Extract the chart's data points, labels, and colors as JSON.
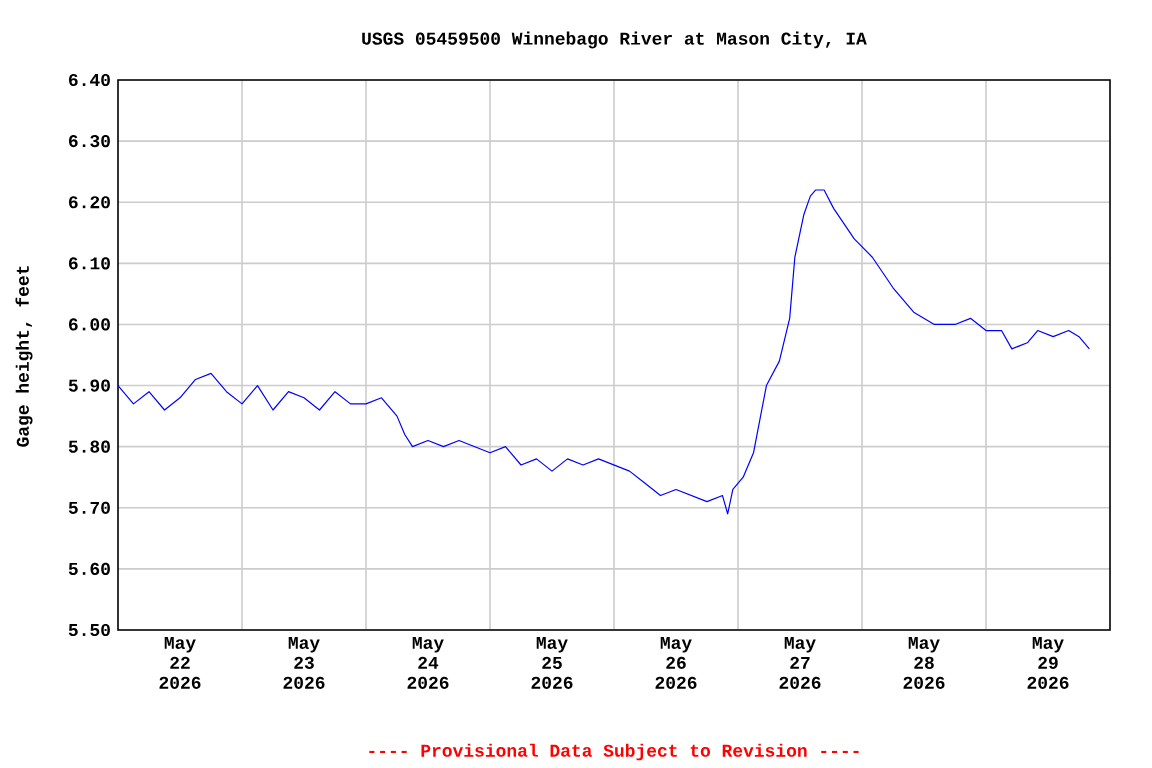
{
  "chart_data": {
    "type": "line",
    "title": "USGS 05459500 Winnebago River at Mason City, IA",
    "ylabel": "Gage height, feet",
    "annotations": [
      "---- Provisional Data Subject to Revision ----"
    ],
    "x": [
      "2026-05-22T00:00",
      "2026-05-22T03:00",
      "2026-05-22T06:00",
      "2026-05-22T09:00",
      "2026-05-22T12:00",
      "2026-05-22T15:00",
      "2026-05-22T18:00",
      "2026-05-22T21:00",
      "2026-05-23T00:00",
      "2026-05-23T03:00",
      "2026-05-23T06:00",
      "2026-05-23T09:00",
      "2026-05-23T12:00",
      "2026-05-23T15:00",
      "2026-05-23T18:00",
      "2026-05-23T21:00",
      "2026-05-24T00:00",
      "2026-05-24T03:00",
      "2026-05-24T06:00",
      "2026-05-24T07:30",
      "2026-05-24T09:00",
      "2026-05-24T12:00",
      "2026-05-24T15:00",
      "2026-05-24T18:00",
      "2026-05-24T21:00",
      "2026-05-25T00:00",
      "2026-05-25T03:00",
      "2026-05-25T06:00",
      "2026-05-25T09:00",
      "2026-05-25T12:00",
      "2026-05-25T15:00",
      "2026-05-25T18:00",
      "2026-05-25T21:00",
      "2026-05-26T00:00",
      "2026-05-26T03:00",
      "2026-05-26T06:00",
      "2026-05-26T09:00",
      "2026-05-26T12:00",
      "2026-05-26T15:00",
      "2026-05-26T18:00",
      "2026-05-26T21:00",
      "2026-05-26T22:00",
      "2026-05-26T23:00",
      "2026-05-27T01:00",
      "2026-05-27T03:00",
      "2026-05-27T05:30",
      "2026-05-27T08:00",
      "2026-05-27T10:00",
      "2026-05-27T11:00",
      "2026-05-27T12:45",
      "2026-05-27T14:00",
      "2026-05-27T15:00",
      "2026-05-27T16:40",
      "2026-05-27T18:30",
      "2026-05-27T22:30",
      "2026-05-28T02:00",
      "2026-05-28T06:00",
      "2026-05-28T10:00",
      "2026-05-28T14:00",
      "2026-05-28T18:00",
      "2026-05-28T21:00",
      "2026-05-29T00:00",
      "2026-05-29T03:00",
      "2026-05-29T05:00",
      "2026-05-29T08:00",
      "2026-05-29T10:00",
      "2026-05-29T13:00",
      "2026-05-29T16:00",
      "2026-05-29T18:00",
      "2026-05-29T20:00"
    ],
    "values": [
      5.9,
      5.87,
      5.89,
      5.86,
      5.88,
      5.91,
      5.92,
      5.89,
      5.87,
      5.9,
      5.86,
      5.89,
      5.88,
      5.86,
      5.89,
      5.87,
      5.87,
      5.88,
      5.85,
      5.82,
      5.8,
      5.81,
      5.8,
      5.81,
      5.8,
      5.79,
      5.8,
      5.77,
      5.78,
      5.76,
      5.78,
      5.77,
      5.78,
      5.77,
      5.76,
      5.74,
      5.72,
      5.73,
      5.72,
      5.71,
      5.72,
      5.69,
      5.73,
      5.75,
      5.79,
      5.9,
      5.94,
      6.01,
      6.11,
      6.18,
      6.21,
      6.22,
      6.22,
      6.19,
      6.14,
      6.11,
      6.06,
      6.02,
      6.0,
      6.0,
      6.01,
      5.99,
      5.99,
      5.96,
      5.97,
      5.99,
      5.98,
      5.99,
      5.98,
      5.96
    ],
    "color": "#0000ff",
    "xlim": [
      "2026-05-22T00:00",
      "2026-05-30T00:00"
    ],
    "xticks": [
      {
        "value": "2026-05-22T12:00",
        "label": "May 22 2026"
      },
      {
        "value": "2026-05-23T00:00",
        "label": null
      },
      {
        "value": "2026-05-23T12:00",
        "label": "May 23 2026"
      },
      {
        "value": "2026-05-24T00:00",
        "label": null
      },
      {
        "value": "2026-05-24T12:00",
        "label": "May 24 2026"
      },
      {
        "value": "2026-05-25T00:00",
        "label": null
      },
      {
        "value": "2026-05-25T12:00",
        "label": "May 25 2026"
      },
      {
        "value": "2026-05-26T00:00",
        "label": null
      },
      {
        "value": "2026-05-26T12:00",
        "label": "May 26 2026"
      },
      {
        "value": "2026-05-27T00:00",
        "label": null
      },
      {
        "value": "2026-05-27T12:00",
        "label": "May 27 2026"
      },
      {
        "value": "2026-05-28T00:00",
        "label": null
      },
      {
        "value": "2026-05-28T12:00",
        "label": "May 28 2026"
      },
      {
        "value": "2026-05-29T00:00",
        "label": null
      },
      {
        "value": "2026-05-29T12:00",
        "label": "May 29 2026"
      }
    ],
    "ylim": [
      5.5,
      6.4
    ],
    "yticks": [
      {
        "value": 5.5,
        "label": "5.50"
      },
      {
        "value": 5.6,
        "label": "5.60"
      },
      {
        "value": 5.7,
        "label": "5.70"
      },
      {
        "value": 5.8,
        "label": "5.80"
      },
      {
        "value": 5.9,
        "label": "5.90"
      },
      {
        "value": 6.0,
        "label": "6.00"
      },
      {
        "value": 6.1,
        "label": "6.10"
      },
      {
        "value": 6.2,
        "label": "6.20"
      },
      {
        "value": 6.3,
        "label": "6.30"
      },
      {
        "value": 6.4,
        "label": "6.40"
      }
    ],
    "grid": true,
    "marker": "none",
    "line_style": "solid"
  }
}
